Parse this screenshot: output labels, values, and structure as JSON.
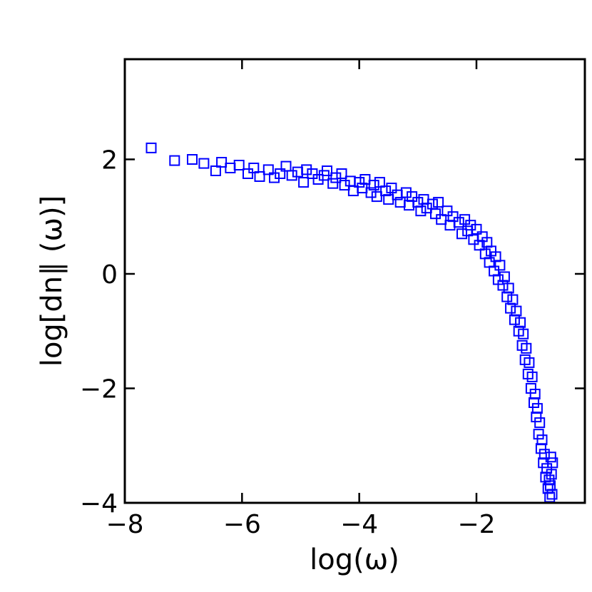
{
  "chart_data": {
    "type": "scatter",
    "xlabel": "log(ω)",
    "ylabel": "log[dn∥ (ω)]",
    "xlim": [
      -8,
      -0.15
    ],
    "ylim": [
      -4,
      3.75
    ],
    "xticks": [
      -8,
      -6,
      -4,
      -2
    ],
    "yticks": [
      -4,
      -2,
      0,
      2
    ],
    "xtick_labels": [
      "−8",
      "−6",
      "−4",
      "−2"
    ],
    "ytick_labels": [
      "−4",
      "−2",
      "0",
      "2"
    ],
    "marker": "open-square",
    "color": "#0000ff",
    "grid": false,
    "series": [
      {
        "points": [
          [
            -7.55,
            2.2
          ],
          [
            -7.15,
            1.98
          ],
          [
            -6.85,
            2.0
          ],
          [
            -6.65,
            1.93
          ],
          [
            -6.45,
            1.8
          ],
          [
            -6.35,
            1.95
          ],
          [
            -6.2,
            1.85
          ],
          [
            -6.05,
            1.9
          ],
          [
            -5.9,
            1.75
          ],
          [
            -5.8,
            1.85
          ],
          [
            -5.7,
            1.7
          ],
          [
            -5.55,
            1.82
          ],
          [
            -5.45,
            1.68
          ],
          [
            -5.35,
            1.75
          ],
          [
            -5.25,
            1.88
          ],
          [
            -5.15,
            1.72
          ],
          [
            -5.05,
            1.78
          ],
          [
            -4.95,
            1.6
          ],
          [
            -4.9,
            1.82
          ],
          [
            -4.8,
            1.75
          ],
          [
            -4.7,
            1.65
          ],
          [
            -4.6,
            1.72
          ],
          [
            -4.55,
            1.8
          ],
          [
            -4.45,
            1.58
          ],
          [
            -4.4,
            1.68
          ],
          [
            -4.3,
            1.75
          ],
          [
            -4.25,
            1.55
          ],
          [
            -4.15,
            1.62
          ],
          [
            -4.1,
            1.45
          ],
          [
            -4.0,
            1.6
          ],
          [
            -3.95,
            1.5
          ],
          [
            -3.9,
            1.65
          ],
          [
            -3.8,
            1.42
          ],
          [
            -3.75,
            1.55
          ],
          [
            -3.7,
            1.35
          ],
          [
            -3.65,
            1.6
          ],
          [
            -3.55,
            1.45
          ],
          [
            -3.5,
            1.3
          ],
          [
            -3.45,
            1.5
          ],
          [
            -3.35,
            1.38
          ],
          [
            -3.3,
            1.25
          ],
          [
            -3.2,
            1.42
          ],
          [
            -3.15,
            1.2
          ],
          [
            -3.1,
            1.35
          ],
          [
            -3.0,
            1.25
          ],
          [
            -2.95,
            1.1
          ],
          [
            -2.9,
            1.3
          ],
          [
            -2.85,
            1.15
          ],
          [
            -2.75,
            1.22
          ],
          [
            -2.7,
            1.05
          ],
          [
            -2.65,
            1.25
          ],
          [
            -2.6,
            0.95
          ],
          [
            -2.5,
            1.1
          ],
          [
            -2.45,
            0.85
          ],
          [
            -2.4,
            1.0
          ],
          [
            -2.3,
            0.9
          ],
          [
            -2.25,
            0.7
          ],
          [
            -2.2,
            0.95
          ],
          [
            -2.15,
            0.75
          ],
          [
            -2.1,
            0.85
          ],
          [
            -2.05,
            0.6
          ],
          [
            -2.0,
            0.78
          ],
          [
            -1.95,
            0.5
          ],
          [
            -1.9,
            0.65
          ],
          [
            -1.85,
            0.35
          ],
          [
            -1.82,
            0.55
          ],
          [
            -1.78,
            0.2
          ],
          [
            -1.75,
            0.4
          ],
          [
            -1.7,
            0.05
          ],
          [
            -1.67,
            0.3
          ],
          [
            -1.63,
            -0.1
          ],
          [
            -1.6,
            0.15
          ],
          [
            -1.55,
            -0.2
          ],
          [
            -1.52,
            -0.05
          ],
          [
            -1.48,
            -0.4
          ],
          [
            -1.45,
            -0.25
          ],
          [
            -1.42,
            -0.6
          ],
          [
            -1.38,
            -0.45
          ],
          [
            -1.35,
            -0.8
          ],
          [
            -1.32,
            -0.65
          ],
          [
            -1.28,
            -1.0
          ],
          [
            -1.25,
            -0.85
          ],
          [
            -1.22,
            -1.25
          ],
          [
            -1.2,
            -1.05
          ],
          [
            -1.17,
            -1.5
          ],
          [
            -1.15,
            -1.3
          ],
          [
            -1.12,
            -1.75
          ],
          [
            -1.1,
            -1.55
          ],
          [
            -1.07,
            -2.0
          ],
          [
            -1.05,
            -1.8
          ],
          [
            -1.02,
            -2.25
          ],
          [
            -1.0,
            -2.1
          ],
          [
            -0.98,
            -2.5
          ],
          [
            -0.96,
            -2.35
          ],
          [
            -0.94,
            -2.8
          ],
          [
            -0.92,
            -2.6
          ],
          [
            -0.9,
            -3.05
          ],
          [
            -0.88,
            -2.9
          ],
          [
            -0.86,
            -3.3
          ],
          [
            -0.84,
            -3.15
          ],
          [
            -0.82,
            -3.55
          ],
          [
            -0.8,
            -3.4
          ],
          [
            -0.78,
            -3.75
          ],
          [
            -0.76,
            -3.6
          ],
          [
            -0.75,
            -3.9
          ],
          [
            -0.74,
            -3.7
          ],
          [
            -0.73,
            -3.2
          ],
          [
            -0.72,
            -3.5
          ],
          [
            -0.71,
            -3.85
          ],
          [
            -0.7,
            -3.3
          ]
        ]
      }
    ]
  }
}
